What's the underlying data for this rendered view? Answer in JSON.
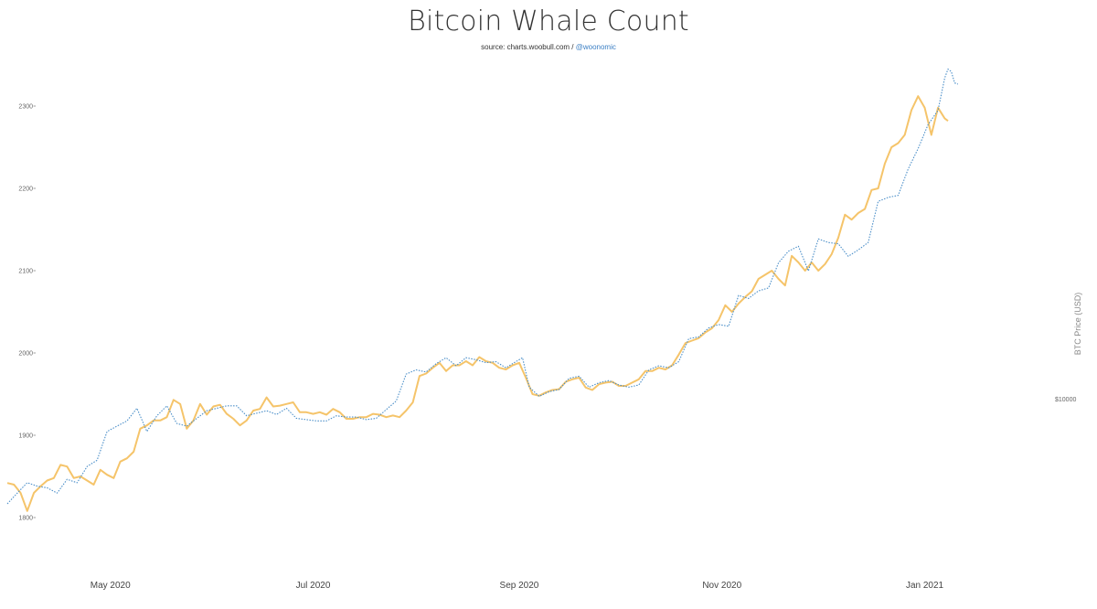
{
  "title": "Bitcoin Whale Count",
  "subtitle": {
    "source_text": "source: charts.woobull.com /",
    "handle": "@woonomic"
  },
  "colors": {
    "whale_line": "#f5c46a",
    "price_line": "#4a8ec8",
    "text": "#333333",
    "handle": "#3b7fc4"
  },
  "chart_data": {
    "type": "line",
    "title": "Bitcoin Whale Count",
    "ylabel": "",
    "y2label": "BTC Price (USD)",
    "x_range": [
      "2020-03-31",
      "2021-01-11"
    ],
    "ylim": [
      1760,
      2320
    ],
    "y_ticks": [
      {
        "value": 1800,
        "label": "1800"
      },
      {
        "value": 1900,
        "label": "1900"
      },
      {
        "value": 2000,
        "label": "2000"
      },
      {
        "value": 2100,
        "label": "2100"
      },
      {
        "value": 2200,
        "label": "2200"
      },
      {
        "value": 2300,
        "label": "2300"
      }
    ],
    "y2_scale": "log",
    "y2_ticks": [
      {
        "value": 10000,
        "label": "$10000"
      }
    ],
    "x_ticks": [
      {
        "date": "2020-05-01",
        "label": "May 2020"
      },
      {
        "date": "2020-07-01",
        "label": "Jul 2020"
      },
      {
        "date": "2020-09-01",
        "label": "Sep 2020"
      },
      {
        "date": "2020-11-01",
        "label": "Nov 2020"
      },
      {
        "date": "2021-01-01",
        "label": "Jan 2021"
      }
    ],
    "grid": false,
    "legend": "none",
    "series": [
      {
        "key": "whales",
        "style": "solid",
        "points": [
          [
            "2020-03-31",
            1842
          ],
          [
            "2020-04-02",
            1840
          ],
          [
            "2020-04-04",
            1830
          ],
          [
            "2020-04-06",
            1808
          ],
          [
            "2020-04-08",
            1830
          ],
          [
            "2020-04-10",
            1838
          ],
          [
            "2020-04-12",
            1845
          ],
          [
            "2020-04-14",
            1848
          ],
          [
            "2020-04-16",
            1864
          ],
          [
            "2020-04-18",
            1862
          ],
          [
            "2020-04-20",
            1848
          ],
          [
            "2020-04-22",
            1850
          ],
          [
            "2020-04-24",
            1845
          ],
          [
            "2020-04-26",
            1840
          ],
          [
            "2020-04-28",
            1858
          ],
          [
            "2020-04-30",
            1852
          ],
          [
            "2020-05-02",
            1848
          ],
          [
            "2020-05-04",
            1868
          ],
          [
            "2020-05-06",
            1872
          ],
          [
            "2020-05-08",
            1880
          ],
          [
            "2020-05-10",
            1908
          ],
          [
            "2020-05-12",
            1912
          ],
          [
            "2020-05-14",
            1918
          ],
          [
            "2020-05-16",
            1918
          ],
          [
            "2020-05-18",
            1922
          ],
          [
            "2020-05-20",
            1943
          ],
          [
            "2020-05-22",
            1938
          ],
          [
            "2020-05-24",
            1908
          ],
          [
            "2020-05-26",
            1918
          ],
          [
            "2020-05-28",
            1938
          ],
          [
            "2020-05-30",
            1925
          ],
          [
            "2020-06-01",
            1935
          ],
          [
            "2020-06-03",
            1937
          ],
          [
            "2020-06-05",
            1926
          ],
          [
            "2020-06-07",
            1920
          ],
          [
            "2020-06-09",
            1912
          ],
          [
            "2020-06-11",
            1918
          ],
          [
            "2020-06-13",
            1930
          ],
          [
            "2020-06-15",
            1932
          ],
          [
            "2020-06-17",
            1946
          ],
          [
            "2020-06-19",
            1935
          ],
          [
            "2020-06-21",
            1936
          ],
          [
            "2020-06-23",
            1938
          ],
          [
            "2020-06-25",
            1940
          ],
          [
            "2020-06-27",
            1928
          ],
          [
            "2020-06-29",
            1928
          ],
          [
            "2020-07-01",
            1926
          ],
          [
            "2020-07-03",
            1928
          ],
          [
            "2020-07-05",
            1925
          ],
          [
            "2020-07-07",
            1932
          ],
          [
            "2020-07-09",
            1928
          ],
          [
            "2020-07-11",
            1920
          ],
          [
            "2020-07-13",
            1920
          ],
          [
            "2020-07-15",
            1922
          ],
          [
            "2020-07-17",
            1922
          ],
          [
            "2020-07-19",
            1926
          ],
          [
            "2020-07-21",
            1925
          ],
          [
            "2020-07-23",
            1922
          ],
          [
            "2020-07-25",
            1924
          ],
          [
            "2020-07-27",
            1922
          ],
          [
            "2020-07-29",
            1930
          ],
          [
            "2020-07-31",
            1940
          ],
          [
            "2020-08-02",
            1972
          ],
          [
            "2020-08-04",
            1975
          ],
          [
            "2020-08-06",
            1982
          ],
          [
            "2020-08-08",
            1988
          ],
          [
            "2020-08-10",
            1978
          ],
          [
            "2020-08-12",
            1985
          ],
          [
            "2020-08-14",
            1985
          ],
          [
            "2020-08-16",
            1990
          ],
          [
            "2020-08-18",
            1985
          ],
          [
            "2020-08-20",
            1995
          ],
          [
            "2020-08-22",
            1990
          ],
          [
            "2020-08-24",
            1988
          ],
          [
            "2020-08-26",
            1982
          ],
          [
            "2020-08-28",
            1980
          ],
          [
            "2020-08-30",
            1985
          ],
          [
            "2020-09-01",
            1988
          ],
          [
            "2020-09-03",
            1970
          ],
          [
            "2020-09-05",
            1950
          ],
          [
            "2020-09-07",
            1948
          ],
          [
            "2020-09-09",
            1952
          ],
          [
            "2020-09-11",
            1955
          ],
          [
            "2020-09-13",
            1956
          ],
          [
            "2020-09-15",
            1965
          ],
          [
            "2020-09-17",
            1968
          ],
          [
            "2020-09-19",
            1970
          ],
          [
            "2020-09-21",
            1958
          ],
          [
            "2020-09-23",
            1955
          ],
          [
            "2020-09-25",
            1962
          ],
          [
            "2020-09-27",
            1964
          ],
          [
            "2020-09-29",
            1965
          ],
          [
            "2020-10-01",
            1960
          ],
          [
            "2020-10-03",
            1960
          ],
          [
            "2020-10-05",
            1964
          ],
          [
            "2020-10-07",
            1968
          ],
          [
            "2020-10-09",
            1978
          ],
          [
            "2020-10-11",
            1978
          ],
          [
            "2020-10-13",
            1982
          ],
          [
            "2020-10-15",
            1980
          ],
          [
            "2020-10-17",
            1985
          ],
          [
            "2020-10-19",
            1998
          ],
          [
            "2020-10-21",
            2012
          ],
          [
            "2020-10-23",
            2015
          ],
          [
            "2020-10-25",
            2018
          ],
          [
            "2020-10-27",
            2025
          ],
          [
            "2020-10-29",
            2030
          ],
          [
            "2020-10-31",
            2040
          ],
          [
            "2020-11-02",
            2058
          ],
          [
            "2020-11-04",
            2050
          ],
          [
            "2020-11-06",
            2060
          ],
          [
            "2020-11-08",
            2068
          ],
          [
            "2020-11-10",
            2075
          ],
          [
            "2020-11-12",
            2090
          ],
          [
            "2020-11-14",
            2095
          ],
          [
            "2020-11-16",
            2100
          ],
          [
            "2020-11-18",
            2090
          ],
          [
            "2020-11-20",
            2082
          ],
          [
            "2020-11-22",
            2118
          ],
          [
            "2020-11-24",
            2110
          ],
          [
            "2020-11-26",
            2100
          ],
          [
            "2020-11-28",
            2110
          ],
          [
            "2020-11-30",
            2100
          ],
          [
            "2020-12-02",
            2108
          ],
          [
            "2020-12-04",
            2120
          ],
          [
            "2020-12-06",
            2140
          ],
          [
            "2020-12-08",
            2168
          ],
          [
            "2020-12-10",
            2162
          ],
          [
            "2020-12-12",
            2170
          ],
          [
            "2020-12-14",
            2175
          ],
          [
            "2020-12-16",
            2198
          ],
          [
            "2020-12-18",
            2200
          ],
          [
            "2020-12-20",
            2230
          ],
          [
            "2020-12-22",
            2250
          ],
          [
            "2020-12-24",
            2255
          ],
          [
            "2020-12-26",
            2265
          ],
          [
            "2020-12-28",
            2295
          ],
          [
            "2020-12-30",
            2312
          ],
          [
            "2021-01-01",
            2298
          ],
          [
            "2021-01-03",
            2265
          ],
          [
            "2021-01-05",
            2298
          ],
          [
            "2021-01-07",
            2285
          ],
          [
            "2021-01-08",
            2282
          ]
        ]
      },
      {
        "key": "btc_price",
        "style": "dotted",
        "axis": "right",
        "points": [
          [
            "2020-03-31",
            6400
          ],
          [
            "2020-04-03",
            6700
          ],
          [
            "2020-04-06",
            7000
          ],
          [
            "2020-04-09",
            6900
          ],
          [
            "2020-04-12",
            6850
          ],
          [
            "2020-04-15",
            6700
          ],
          [
            "2020-04-18",
            7100
          ],
          [
            "2020-04-21",
            7000
          ],
          [
            "2020-04-24",
            7500
          ],
          [
            "2020-04-27",
            7700
          ],
          [
            "2020-04-30",
            8700
          ],
          [
            "2020-05-03",
            8900
          ],
          [
            "2020-05-06",
            9100
          ],
          [
            "2020-05-09",
            9600
          ],
          [
            "2020-05-12",
            8700
          ],
          [
            "2020-05-15",
            9300
          ],
          [
            "2020-05-18",
            9700
          ],
          [
            "2020-05-21",
            9000
          ],
          [
            "2020-05-24",
            8900
          ],
          [
            "2020-05-27",
            9200
          ],
          [
            "2020-05-30",
            9500
          ],
          [
            "2020-06-02",
            9600
          ],
          [
            "2020-06-05",
            9700
          ],
          [
            "2020-06-08",
            9700
          ],
          [
            "2020-06-11",
            9300
          ],
          [
            "2020-06-14",
            9400
          ],
          [
            "2020-06-17",
            9500
          ],
          [
            "2020-06-20",
            9350
          ],
          [
            "2020-06-23",
            9600
          ],
          [
            "2020-06-26",
            9200
          ],
          [
            "2020-06-29",
            9150
          ],
          [
            "2020-07-02",
            9100
          ],
          [
            "2020-07-05",
            9100
          ],
          [
            "2020-07-08",
            9300
          ],
          [
            "2020-07-11",
            9250
          ],
          [
            "2020-07-14",
            9250
          ],
          [
            "2020-07-17",
            9150
          ],
          [
            "2020-07-20",
            9200
          ],
          [
            "2020-07-23",
            9550
          ],
          [
            "2020-07-26",
            9900
          ],
          [
            "2020-07-29",
            11100
          ],
          [
            "2020-08-01",
            11300
          ],
          [
            "2020-08-04",
            11200
          ],
          [
            "2020-08-07",
            11600
          ],
          [
            "2020-08-10",
            11900
          ],
          [
            "2020-08-13",
            11500
          ],
          [
            "2020-08-16",
            11900
          ],
          [
            "2020-08-19",
            11800
          ],
          [
            "2020-08-22",
            11650
          ],
          [
            "2020-08-25",
            11700
          ],
          [
            "2020-08-28",
            11400
          ],
          [
            "2020-08-31",
            11700
          ],
          [
            "2020-09-02",
            11900
          ],
          [
            "2020-09-04",
            10500
          ],
          [
            "2020-09-07",
            10100
          ],
          [
            "2020-09-10",
            10300
          ],
          [
            "2020-09-13",
            10400
          ],
          [
            "2020-09-16",
            10900
          ],
          [
            "2020-09-19",
            11000
          ],
          [
            "2020-09-22",
            10500
          ],
          [
            "2020-09-25",
            10700
          ],
          [
            "2020-09-28",
            10800
          ],
          [
            "2020-10-01",
            10600
          ],
          [
            "2020-10-04",
            10500
          ],
          [
            "2020-10-07",
            10600
          ],
          [
            "2020-10-10",
            11300
          ],
          [
            "2020-10-13",
            11500
          ],
          [
            "2020-10-16",
            11400
          ],
          [
            "2020-10-19",
            11700
          ],
          [
            "2020-10-22",
            12900
          ],
          [
            "2020-10-25",
            13000
          ],
          [
            "2020-10-28",
            13500
          ],
          [
            "2020-10-31",
            13700
          ],
          [
            "2020-11-03",
            13600
          ],
          [
            "2020-11-06",
            15500
          ],
          [
            "2020-11-09",
            15300
          ],
          [
            "2020-11-12",
            15800
          ],
          [
            "2020-11-15",
            16000
          ],
          [
            "2020-11-18",
            17800
          ],
          [
            "2020-11-21",
            18700
          ],
          [
            "2020-11-24",
            19100
          ],
          [
            "2020-11-27",
            17200
          ],
          [
            "2020-11-30",
            19700
          ],
          [
            "2020-12-03",
            19400
          ],
          [
            "2020-12-06",
            19300
          ],
          [
            "2020-12-09",
            18300
          ],
          [
            "2020-12-12",
            18800
          ],
          [
            "2020-12-15",
            19400
          ],
          [
            "2020-12-18",
            23100
          ],
          [
            "2020-12-21",
            23500
          ],
          [
            "2020-12-24",
            23700
          ],
          [
            "2020-12-27",
            26500
          ],
          [
            "2020-12-30",
            28900
          ],
          [
            "2021-01-02",
            32000
          ],
          [
            "2021-01-05",
            34000
          ],
          [
            "2021-01-07",
            39000
          ],
          [
            "2021-01-08",
            40500
          ],
          [
            "2021-01-09",
            40100
          ],
          [
            "2021-01-10",
            38200
          ],
          [
            "2021-01-11",
            38000
          ]
        ]
      }
    ]
  }
}
